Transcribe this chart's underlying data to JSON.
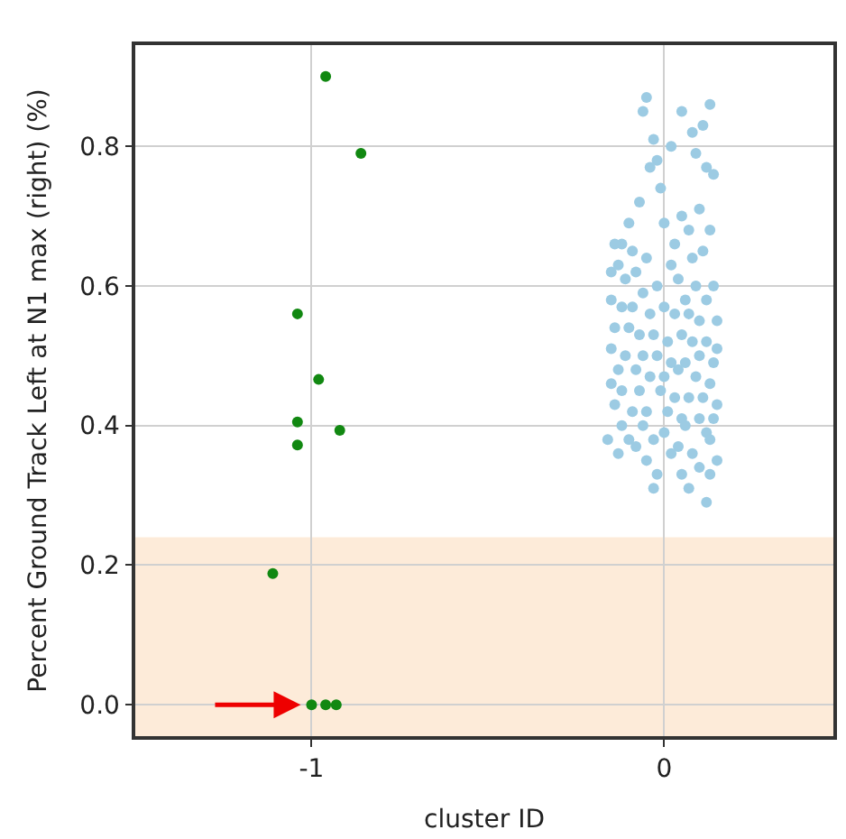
{
  "chart_data": {
    "type": "scatter",
    "xlabel": "cluster ID",
    "ylabel": "Percent Ground Track Left at N1 max (right) (%)",
    "xlim": [
      -1.5,
      0.48
    ],
    "ylim": [
      -0.045,
      0.945
    ],
    "xticks": [
      -1,
      0
    ],
    "yticks": [
      {
        "value": 0,
        "label": "0.0"
      },
      0.2,
      0.4,
      0.6,
      0.8
    ],
    "grid": true,
    "marker": "circle",
    "bands": [
      {
        "axis": "y",
        "from": -0.045,
        "to": 0.24,
        "color": "#fdebd9"
      }
    ],
    "series": [
      {
        "color": "#118811",
        "x": [
          -0.96,
          -0.86,
          -1.04,
          -0.98,
          -1.04,
          -1.04,
          -0.92,
          -1.11,
          -1.0,
          -0.96,
          -0.93
        ],
        "values": [
          0.9,
          0.79,
          0.56,
          0.466,
          0.405,
          0.372,
          0.393,
          0.188,
          0.0,
          0.0,
          0.0
        ]
      },
      {
        "color": "#9ccbe3",
        "x": [
          -0.06,
          -0.05,
          -0.03,
          0.05,
          0.08,
          0.11,
          0.13,
          0.02,
          -0.02,
          0.09,
          0.12,
          -0.04,
          -0.01,
          0.14,
          0.1,
          0.05,
          -0.07,
          -0.1,
          -0.12,
          0.0,
          0.07,
          0.13,
          -0.14,
          -0.09,
          0.03,
          0.11,
          -0.05,
          0.02,
          0.08,
          -0.13,
          -0.15,
          -0.11,
          -0.08,
          -0.02,
          0.04,
          0.09,
          0.14,
          0.12,
          -0.06,
          0.06,
          -0.15,
          -0.12,
          -0.09,
          -0.04,
          0.0,
          0.03,
          0.07,
          0.1,
          0.15,
          -0.14,
          -0.1,
          -0.07,
          -0.03,
          0.01,
          0.05,
          0.08,
          0.12,
          0.15,
          -0.15,
          -0.11,
          -0.06,
          -0.02,
          0.02,
          0.06,
          0.1,
          0.14,
          -0.13,
          -0.08,
          -0.04,
          0.0,
          0.04,
          0.09,
          0.13,
          -0.15,
          -0.12,
          -0.07,
          -0.01,
          0.03,
          0.07,
          0.11,
          0.15,
          -0.14,
          -0.09,
          -0.05,
          0.01,
          0.05,
          0.1,
          0.14,
          -0.12,
          -0.06,
          0.0,
          0.06,
          0.12,
          -0.1,
          -0.03,
          0.04,
          0.13,
          -0.08,
          0.02,
          0.08,
          -0.13,
          -0.05,
          0.1,
          0.15,
          -0.16,
          -0.02,
          0.05,
          -0.03,
          0.07,
          0.12,
          0.13
        ],
        "values": [
          0.85,
          0.87,
          0.81,
          0.85,
          0.82,
          0.83,
          0.86,
          0.8,
          0.78,
          0.79,
          0.77,
          0.77,
          0.74,
          0.76,
          0.71,
          0.7,
          0.72,
          0.69,
          0.66,
          0.69,
          0.68,
          0.68,
          0.66,
          0.65,
          0.66,
          0.65,
          0.64,
          0.63,
          0.64,
          0.63,
          0.62,
          0.61,
          0.62,
          0.6,
          0.61,
          0.6,
          0.6,
          0.58,
          0.59,
          0.58,
          0.58,
          0.57,
          0.57,
          0.56,
          0.57,
          0.56,
          0.56,
          0.55,
          0.55,
          0.54,
          0.54,
          0.53,
          0.53,
          0.52,
          0.53,
          0.52,
          0.52,
          0.51,
          0.51,
          0.5,
          0.5,
          0.5,
          0.49,
          0.49,
          0.5,
          0.49,
          0.48,
          0.48,
          0.47,
          0.47,
          0.48,
          0.47,
          0.46,
          0.46,
          0.45,
          0.45,
          0.45,
          0.44,
          0.44,
          0.44,
          0.43,
          0.43,
          0.42,
          0.42,
          0.42,
          0.41,
          0.41,
          0.41,
          0.4,
          0.4,
          0.39,
          0.4,
          0.39,
          0.38,
          0.38,
          0.37,
          0.38,
          0.37,
          0.36,
          0.36,
          0.36,
          0.35,
          0.34,
          0.35,
          0.38,
          0.33,
          0.33,
          0.31,
          0.31,
          0.29,
          0.33
        ]
      }
    ]
  }
}
